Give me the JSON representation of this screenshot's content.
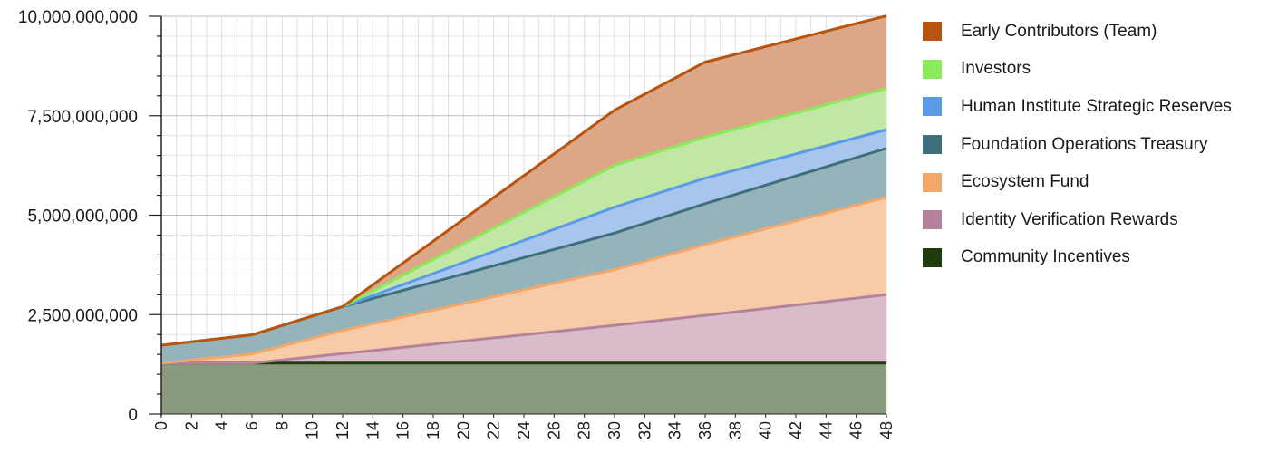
{
  "chart_data": {
    "type": "area",
    "stacked": true,
    "x": [
      0,
      6,
      12,
      30,
      36,
      48
    ],
    "xticks": [
      "0",
      "2",
      "4",
      "6",
      "8",
      "10",
      "12",
      "14",
      "16",
      "18",
      "20",
      "22",
      "24",
      "26",
      "28",
      "30",
      "32",
      "34",
      "36",
      "38",
      "40",
      "42",
      "44",
      "46",
      "48"
    ],
    "yticks": [
      "0",
      "2,500,000,000",
      "5,000,000,000",
      "7,500,000,000",
      "10,000,000,000"
    ],
    "ylim": [
      0,
      10000000000
    ],
    "xlim": [
      0,
      48
    ],
    "grid": true,
    "legend_position": "right",
    "title": "",
    "xlabel": "",
    "ylabel": "",
    "series": [
      {
        "name": "Community Incentives",
        "color": "#1f3d0c",
        "fill": "#8a9a7c",
        "values": [
          1280000000,
          1280000000,
          1280000000,
          1280000000,
          1280000000,
          1280000000
        ]
      },
      {
        "name": "Identity Verification Rewards",
        "color": "#b5829b",
        "fill": "#d8bccb",
        "values": [
          0,
          0,
          240000000,
          950000000,
          1200000000,
          1720000000
        ]
      },
      {
        "name": "Ecosystem Fund",
        "color": "#f3a86a",
        "fill": "#f7cba7",
        "values": [
          0,
          230000000,
          580000000,
          1400000000,
          1780000000,
          2450000000
        ]
      },
      {
        "name": "Foundation Operations Treasury",
        "color": "#3d6f7d",
        "fill": "#95b3bb",
        "values": [
          450000000,
          480000000,
          600000000,
          920000000,
          1030000000,
          1230000000
        ]
      },
      {
        "name": "Human Institute Strategic Reserves",
        "color": "#5a9ae6",
        "fill": "#a8c6ed",
        "values": [
          0,
          0,
          0,
          650000000,
          640000000,
          470000000
        ]
      },
      {
        "name": "Investors",
        "color": "#8bea5c",
        "fill": "#c0e8a4",
        "values": [
          0,
          0,
          0,
          1050000000,
          1030000000,
          1030000000
        ]
      },
      {
        "name": "Early Contributors (Team)",
        "color": "#b85410",
        "fill": "#dba787",
        "values": [
          0,
          0,
          0,
          1390000000,
          1890000000,
          1830000000
        ]
      }
    ]
  }
}
